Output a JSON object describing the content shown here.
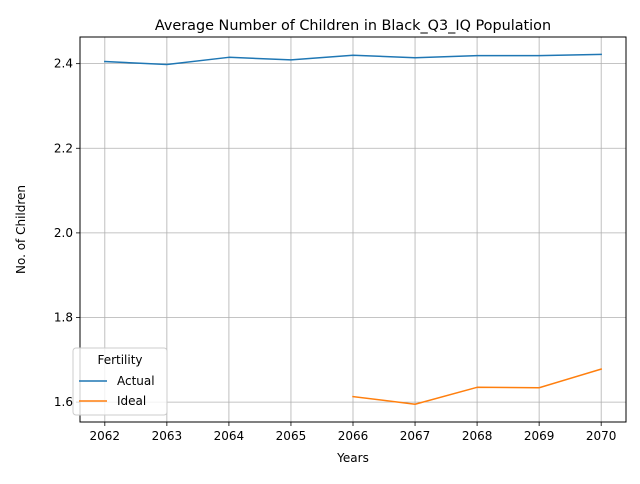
{
  "chart_data": {
    "type": "line",
    "title": "Average Number of Children in Black_Q3_IQ Population",
    "xlabel": "Years",
    "ylabel": "No. of Children",
    "x": [
      2062,
      2063,
      2064,
      2065,
      2066,
      2067,
      2068,
      2069,
      2070
    ],
    "xlim": [
      2061.6,
      2070.4
    ],
    "ylim": [
      1.553,
      2.463
    ],
    "yticks": [
      1.6,
      1.8,
      2.0,
      2.2,
      2.4
    ],
    "ytick_labels": [
      "1.6",
      "1.8",
      "2.0",
      "2.2",
      "2.4"
    ],
    "xtick_labels": [
      "2062",
      "2063",
      "2064",
      "2065",
      "2066",
      "2067",
      "2068",
      "2069",
      "2070"
    ],
    "grid": true,
    "legend": {
      "title": "Fertility",
      "placement": "lower-left"
    },
    "series": [
      {
        "name": "Actual",
        "color": "#1f77b4",
        "values": [
          2.405,
          2.398,
          2.415,
          2.409,
          2.42,
          2.414,
          2.419,
          2.419,
          2.422
        ]
      },
      {
        "name": "Ideal",
        "color": "#ff7f0e",
        "values": [
          null,
          null,
          null,
          null,
          1.613,
          1.595,
          1.635,
          1.634,
          1.678
        ]
      }
    ]
  }
}
